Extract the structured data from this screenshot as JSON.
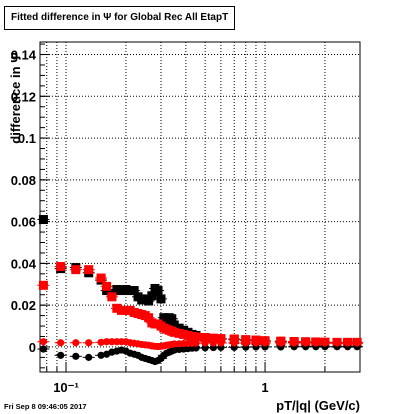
{
  "title": "Fitted difference in Ψ  for Global Rec All EtapT",
  "timestamp": "Fri Sep  8 09:46:05 2017",
  "chart_data": {
    "type": "scatter",
    "title": "Fitted difference in Ψ  for Global Rec All EtapT",
    "xlabel": "pT/|q| (GeV/c)",
    "ylabel": "difference in Ψ",
    "x_scale": "log",
    "xlim": [
      0.074,
      3.0
    ],
    "ylim": [
      -0.012,
      0.146
    ],
    "grid": true,
    "x_ticks": [
      {
        "value": 0.1,
        "label": "10⁻¹"
      },
      {
        "value": 1,
        "label": "1"
      }
    ],
    "y_ticks": [
      {
        "value": 0,
        "label": "0"
      },
      {
        "value": 0.02,
        "label": "0.02"
      },
      {
        "value": 0.04,
        "label": "0.04"
      },
      {
        "value": 0.06,
        "label": "0.06"
      },
      {
        "value": 0.08,
        "label": "0.08"
      },
      {
        "value": 0.1,
        "label": "0.1"
      },
      {
        "value": 0.12,
        "label": "0.12"
      },
      {
        "value": 0.14,
        "label": "0.14"
      }
    ],
    "series": [
      {
        "marker": "square",
        "color": "#000000",
        "points": [
          [
            0.077,
            0.061
          ],
          [
            0.094,
            0.0375
          ],
          [
            0.112,
            0.038
          ],
          [
            0.13,
            0.0355
          ],
          [
            0.15,
            0.032
          ],
          [
            0.16,
            0.027
          ],
          [
            0.17,
            0.025
          ],
          [
            0.18,
            0.0275
          ],
          [
            0.19,
            0.027
          ],
          [
            0.2,
            0.0275
          ],
          [
            0.21,
            0.027
          ],
          [
            0.22,
            0.027
          ],
          [
            0.23,
            0.024
          ],
          [
            0.24,
            0.0225
          ],
          [
            0.25,
            0.023
          ],
          [
            0.26,
            0.022
          ],
          [
            0.27,
            0.0245
          ],
          [
            0.28,
            0.028
          ],
          [
            0.29,
            0.027
          ],
          [
            0.3,
            0.023
          ],
          [
            0.31,
            0.014
          ],
          [
            0.32,
            0.011
          ],
          [
            0.33,
            0.014
          ],
          [
            0.34,
            0.0135
          ],
          [
            0.35,
            0.0105
          ],
          [
            0.37,
            0.009
          ],
          [
            0.39,
            0.008
          ],
          [
            0.41,
            0.007
          ],
          [
            0.43,
            0.006
          ],
          [
            0.45,
            0.0055
          ],
          [
            0.5,
            0.0045
          ],
          [
            0.55,
            0.004
          ],
          [
            0.6,
            0.0038
          ],
          [
            0.7,
            0.0035
          ],
          [
            0.8,
            0.0032
          ],
          [
            0.9,
            0.003
          ],
          [
            1.0,
            0.0028
          ],
          [
            1.2,
            0.0025
          ],
          [
            1.4,
            0.0022
          ],
          [
            1.6,
            0.002
          ],
          [
            1.8,
            0.002
          ],
          [
            2.0,
            0.0018
          ],
          [
            2.3,
            0.0018
          ],
          [
            2.6,
            0.0018
          ],
          [
            2.9,
            0.0018
          ]
        ]
      },
      {
        "marker": "square",
        "color": "#ff0000",
        "points": [
          [
            0.077,
            0.0295
          ],
          [
            0.094,
            0.0385
          ],
          [
            0.112,
            0.037
          ],
          [
            0.13,
            0.037
          ],
          [
            0.15,
            0.033
          ],
          [
            0.16,
            0.029
          ],
          [
            0.17,
            0.024
          ],
          [
            0.18,
            0.0185
          ],
          [
            0.19,
            0.0175
          ],
          [
            0.2,
            0.0175
          ],
          [
            0.21,
            0.0175
          ],
          [
            0.22,
            0.0165
          ],
          [
            0.23,
            0.016
          ],
          [
            0.24,
            0.0155
          ],
          [
            0.25,
            0.015
          ],
          [
            0.26,
            0.014
          ],
          [
            0.27,
            0.0115
          ],
          [
            0.28,
            0.011
          ],
          [
            0.29,
            0.011
          ],
          [
            0.3,
            0.01
          ],
          [
            0.31,
            0.009
          ],
          [
            0.32,
            0.0085
          ],
          [
            0.33,
            0.008
          ],
          [
            0.34,
            0.0075
          ],
          [
            0.35,
            0.007
          ],
          [
            0.37,
            0.0065
          ],
          [
            0.39,
            0.006
          ],
          [
            0.41,
            0.0055
          ],
          [
            0.43,
            0.005
          ],
          [
            0.45,
            0.0048
          ],
          [
            0.5,
            0.0045
          ],
          [
            0.55,
            0.0042
          ],
          [
            0.6,
            0.004
          ],
          [
            0.7,
            0.0038
          ],
          [
            0.8,
            0.0035
          ],
          [
            0.9,
            0.0033
          ],
          [
            1.0,
            0.003
          ],
          [
            1.2,
            0.0028
          ],
          [
            1.4,
            0.0026
          ],
          [
            1.6,
            0.0025
          ],
          [
            1.8,
            0.0024
          ],
          [
            2.0,
            0.0023
          ],
          [
            2.3,
            0.0022
          ],
          [
            2.6,
            0.0022
          ],
          [
            2.9,
            0.0022
          ]
        ]
      },
      {
        "marker": "circle",
        "color": "#000000",
        "points": [
          [
            0.077,
            -0.001
          ],
          [
            0.094,
            -0.004
          ],
          [
            0.112,
            -0.0045
          ],
          [
            0.13,
            -0.005
          ],
          [
            0.15,
            -0.004
          ],
          [
            0.16,
            -0.0035
          ],
          [
            0.17,
            -0.0025
          ],
          [
            0.18,
            -0.002
          ],
          [
            0.19,
            -0.0015
          ],
          [
            0.2,
            -0.002
          ],
          [
            0.21,
            -0.003
          ],
          [
            0.22,
            -0.0035
          ],
          [
            0.23,
            -0.004
          ],
          [
            0.24,
            -0.005
          ],
          [
            0.25,
            -0.0055
          ],
          [
            0.26,
            -0.006
          ],
          [
            0.27,
            -0.0065
          ],
          [
            0.28,
            -0.007
          ],
          [
            0.29,
            -0.0065
          ],
          [
            0.3,
            -0.0055
          ],
          [
            0.31,
            -0.004
          ],
          [
            0.32,
            -0.003
          ],
          [
            0.33,
            -0.0025
          ],
          [
            0.34,
            -0.002
          ],
          [
            0.35,
            -0.0015
          ],
          [
            0.37,
            -0.0012
          ],
          [
            0.39,
            -0.001
          ],
          [
            0.41,
            -0.0008
          ],
          [
            0.43,
            -0.0006
          ],
          [
            0.45,
            -0.0005
          ],
          [
            0.5,
            -0.0004
          ],
          [
            0.55,
            -0.0003
          ],
          [
            0.6,
            -0.0002
          ],
          [
            0.7,
            -0.0002
          ],
          [
            0.8,
            -0.0001
          ],
          [
            0.9,
            0.0
          ],
          [
            1.0,
            0.0
          ],
          [
            1.2,
            0.0
          ],
          [
            1.4,
            0.0001
          ],
          [
            1.6,
            0.0001
          ],
          [
            1.8,
            0.0001
          ],
          [
            2.0,
            0.0001
          ],
          [
            2.3,
            0.0001
          ],
          [
            2.6,
            0.0001
          ],
          [
            2.9,
            0.0001
          ]
        ]
      },
      {
        "marker": "circle",
        "color": "#ff0000",
        "points": [
          [
            0.077,
            0.0025
          ],
          [
            0.094,
            0.002
          ],
          [
            0.112,
            0.002
          ],
          [
            0.13,
            0.002
          ],
          [
            0.15,
            0.0022
          ],
          [
            0.16,
            0.0025
          ],
          [
            0.17,
            0.0025
          ],
          [
            0.18,
            0.0025
          ],
          [
            0.19,
            0.0025
          ],
          [
            0.2,
            0.0025
          ],
          [
            0.21,
            0.002
          ],
          [
            0.22,
            0.0018
          ],
          [
            0.23,
            0.0015
          ],
          [
            0.24,
            0.0012
          ],
          [
            0.25,
            0.001
          ],
          [
            0.26,
            0.0008
          ],
          [
            0.27,
            0.0005
          ],
          [
            0.28,
            0.0003
          ],
          [
            0.29,
            0.0002
          ],
          [
            0.3,
            0.0003
          ],
          [
            0.31,
            0.0005
          ],
          [
            0.32,
            0.0008
          ],
          [
            0.33,
            0.001
          ],
          [
            0.34,
            0.0012
          ],
          [
            0.35,
            0.0014
          ],
          [
            0.37,
            0.0015
          ],
          [
            0.39,
            0.0016
          ],
          [
            0.41,
            0.0017
          ],
          [
            0.43,
            0.0018
          ],
          [
            0.45,
            0.0018
          ],
          [
            0.5,
            0.0019
          ],
          [
            0.55,
            0.0019
          ],
          [
            0.6,
            0.0019
          ],
          [
            0.7,
            0.0019
          ],
          [
            0.8,
            0.0019
          ],
          [
            0.9,
            0.0019
          ],
          [
            1.0,
            0.0019
          ],
          [
            1.2,
            0.0019
          ],
          [
            1.4,
            0.0019
          ],
          [
            1.6,
            0.0019
          ],
          [
            1.8,
            0.0019
          ],
          [
            2.0,
            0.0019
          ],
          [
            2.3,
            0.0019
          ],
          [
            2.6,
            0.0019
          ],
          [
            2.9,
            0.0019
          ]
        ]
      }
    ]
  }
}
